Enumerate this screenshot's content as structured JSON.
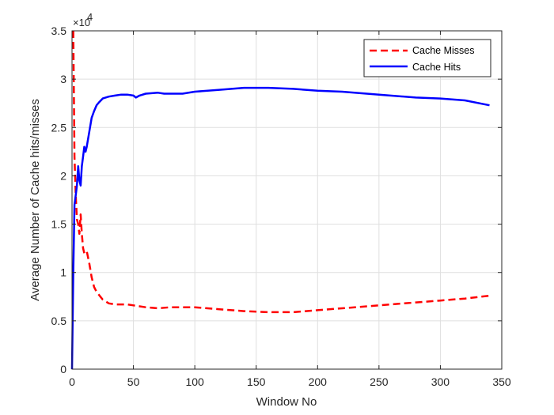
{
  "chart_data": {
    "type": "line",
    "xlabel": "Window No",
    "ylabel": "Average Number of Cache hits/misses",
    "xlim": [
      0,
      350
    ],
    "ylim": [
      0,
      35000
    ],
    "xticks": [
      0,
      50,
      100,
      150,
      200,
      250,
      300,
      350
    ],
    "yticks": [
      0,
      5000,
      10000,
      15000,
      20000,
      25000,
      30000,
      35000
    ],
    "ytick_labels": [
      "0",
      "0.5",
      "1",
      "1.5",
      "2",
      "2.5",
      "3",
      "3.5"
    ],
    "y_exponent_base": "×10",
    "y_exponent_power": "4",
    "grid": true,
    "legend_position": "top-right",
    "series": [
      {
        "name": "Cache Misses",
        "color": "#ff0000",
        "style": "dashed",
        "x": [
          1,
          2,
          3,
          4,
          5,
          6,
          7,
          8,
          9,
          10,
          12,
          14,
          16,
          18,
          20,
          25,
          30,
          35,
          40,
          45,
          50,
          55,
          60,
          70,
          80,
          90,
          100,
          120,
          140,
          160,
          180,
          200,
          220,
          250,
          280,
          300,
          320,
          340
        ],
        "y": [
          35000,
          22000,
          18000,
          15500,
          15000,
          14000,
          16000,
          14000,
          12500,
          12000,
          12200,
          11000,
          9500,
          8500,
          8000,
          7200,
          6800,
          6700,
          6700,
          6700,
          6600,
          6500,
          6400,
          6300,
          6400,
          6400,
          6400,
          6200,
          6000,
          5900,
          5900,
          6100,
          6300,
          6600,
          6900,
          7100,
          7300,
          7600
        ]
      },
      {
        "name": "Cache Hits",
        "color": "#0000ff",
        "style": "solid",
        "x": [
          0,
          1,
          2,
          3,
          4,
          5,
          6,
          7,
          8,
          9,
          10,
          11,
          12,
          14,
          16,
          18,
          20,
          22,
          25,
          30,
          35,
          40,
          45,
          50,
          52,
          55,
          60,
          70,
          75,
          80,
          90,
          100,
          120,
          140,
          160,
          180,
          200,
          220,
          250,
          280,
          300,
          320,
          340
        ],
        "y": [
          0,
          10000,
          17000,
          18000,
          19000,
          21000,
          19500,
          19000,
          21000,
          22000,
          23000,
          22500,
          23000,
          24500,
          26000,
          26700,
          27300,
          27600,
          28000,
          28200,
          28300,
          28400,
          28400,
          28300,
          28100,
          28300,
          28500,
          28600,
          28500,
          28500,
          28500,
          28700,
          28900,
          29100,
          29100,
          29000,
          28800,
          28700,
          28400,
          28100,
          28000,
          27800,
          27300
        ]
      }
    ]
  }
}
